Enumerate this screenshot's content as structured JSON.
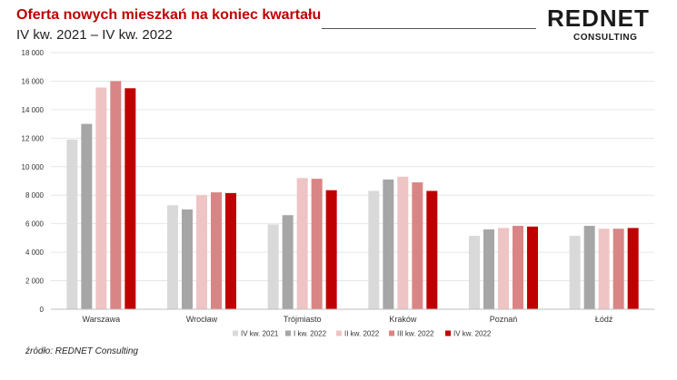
{
  "header": {
    "title": "Oferta nowych mieszkań na koniec kwartału",
    "subtitle": "IV kw. 2021 – IV kw. 2022"
  },
  "logo": {
    "main": "REDNET",
    "sub": "CONSULTING"
  },
  "source": "źródło: REDNET Consulting",
  "chart_data": {
    "type": "bar",
    "categories": [
      "Warszawa",
      "Wrocław",
      "Trójmiasto",
      "Kraków",
      "Poznań",
      "Łódź"
    ],
    "series": [
      {
        "name": "IV kw. 2021",
        "color": "#d9d9d9",
        "values": [
          11900,
          7300,
          5950,
          8300,
          5150,
          5150
        ]
      },
      {
        "name": "I kw. 2022",
        "color": "#a6a6a6",
        "values": [
          13000,
          7000,
          6600,
          9100,
          5600,
          5850
        ]
      },
      {
        "name": "II kw. 2022",
        "color": "#efc4c4",
        "values": [
          15550,
          8000,
          9200,
          9300,
          5700,
          5650
        ]
      },
      {
        "name": "III kw. 2022",
        "color": "#d98585",
        "values": [
          16000,
          8200,
          9150,
          8900,
          5850,
          5650
        ]
      },
      {
        "name": "IV kw. 2022",
        "color": "#c00000",
        "values": [
          15500,
          8150,
          8350,
          8300,
          5800,
          5700
        ]
      }
    ],
    "yticks": [
      "0",
      "2 000",
      "4 000",
      "6 000",
      "8 000",
      "10 000",
      "12 000",
      "14 000",
      "16 000",
      "18 000"
    ],
    "ylim": [
      0,
      18000
    ],
    "grid": true,
    "legend": "bottom"
  }
}
